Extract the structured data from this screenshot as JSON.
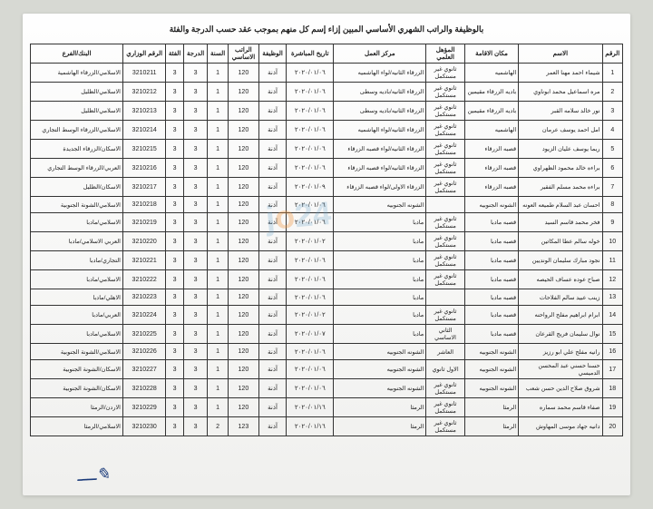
{
  "header": {
    "title": "بالوظيفة والراتب الشهري الأساسي المبين إزاء إسم كل منهم بموجب عقد حسب الدرجة والفئة"
  },
  "columns": {
    "num": "الرقم",
    "name": "الاسم",
    "place": "مكان الاقامة",
    "qual": "المؤهل العلمي",
    "center": "مركز العمل",
    "date": "تاريخ المباشرة",
    "func": "الوظيفة",
    "salary": "الراتب الاساسي",
    "year": "السنة",
    "grade": "الدرجة",
    "alf": "الفئة",
    "minno": "الرقم الوزاري",
    "bank": "البنك/الفرع"
  },
  "common": {
    "func": "آذنة",
    "salary120": "120",
    "salary123": "123",
    "year1": "1",
    "year2": "2",
    "grade3": "3",
    "alf3": "3",
    "qual_sec_inc": "ثانوي غير مستكمل",
    "qual_sec_base": "الثاني الاساسي",
    "qual_ten": "العاشر",
    "qual_first_sec": "الاول ثانوي"
  },
  "rows": [
    {
      "n": "1",
      "name": "شيماء احمد مهنا العمر",
      "place": "الهاشميه",
      "qual": "ثانوي غير مستكمل",
      "center": "الزرقاء الثانيه/لواء الهاشميه",
      "date": "٢٠٢٠/٠١/٠٦",
      "minno": "3210211",
      "bank": "الاسلامي/الزرقاء الهاشمية"
    },
    {
      "n": "2",
      "name": "مره اسماعيل محمد ابوناوي",
      "place": "باديه الزرقاء مقيمين",
      "qual": "ثانوي غير مستكمل",
      "center": "الزرقاء الثانيه/باديه وسطى",
      "date": "٢٠٢٠/٠١/٠٦",
      "minno": "3210212",
      "bank": "الاسلامي/الظليل"
    },
    {
      "n": "3",
      "name": "نور خالد سلامه القبر",
      "place": "باديه الزرقاء مقيمين",
      "qual": "ثانوي غير مستكمل",
      "center": "الزرقاء الثانيه/باديه وسطى",
      "date": "٢٠٢٠/٠١/٠٦",
      "minno": "3210213",
      "bank": "الاسلامي/الظليل"
    },
    {
      "n": "4",
      "name": "امل احمد يوسف عرمان",
      "place": "الهاشميه",
      "qual": "ثانوي غير مستكمل",
      "center": "الزرقاء الثانيه/لواء الهاشميه",
      "date": "٢٠٢٠/٠١/٠٦",
      "minno": "3210214",
      "bank": "الاسلامي/الزرقاء الوسط التجاري"
    },
    {
      "n": "5",
      "name": "ريما يوسف عليان الزيود",
      "place": "قصبه الزرقاء",
      "qual": "ثانوي غير مستكمل",
      "center": "الزرقاء الثانيه/لواء قصبه الزرقاء",
      "date": "٢٠٢٠/٠١/٠٦",
      "minno": "3210215",
      "bank": "الاسكان/الزرقاء الجديدة"
    },
    {
      "n": "6",
      "name": "براءه خالد محمود الظهراوي",
      "place": "قصبه الزرقاء",
      "qual": "ثانوي غير مستكمل",
      "center": "الزرقاء الثانيه/لواء قصبه الزرقاء",
      "date": "٢٠٢٠/٠١/٠٦",
      "minno": "3210216",
      "bank": "العربي/الزرقاء الوسط التجاري"
    },
    {
      "n": "7",
      "name": "براءه محمد مسلم الفقير",
      "place": "قصبه الزرقاء",
      "qual": "ثانوي غير مستكمل",
      "center": "الزرقاء الاولى/لواء قصبه الزرقاء",
      "date": "٢٠٢٠/٠١/٠٩",
      "minno": "3210217",
      "bank": "الاسكان/الظليل"
    },
    {
      "n": "8",
      "name": "احسان عبد السلام طميعه العونه",
      "place": "الشونه الجنوبيه",
      "qual": "",
      "center": "الشونه الجنوبيه",
      "date": "٢٠٢٠/٠١/٠٦",
      "minno": "3210218",
      "bank": "الاسلامي/الشونة الجنوبية"
    },
    {
      "n": "9",
      "name": "فخر محمد قاسم السيد",
      "place": "قصبه مادبا",
      "qual": "ثانوي غير مستكمل",
      "center": "مادبا",
      "date": "٢٠٢٠/٠١/٠٦",
      "minno": "3210219",
      "bank": "الاسلامي/مادبا"
    },
    {
      "n": "10",
      "name": "خوله سالم عطا المكاتين",
      "place": "قصبه مادبا",
      "qual": "ثانوي غير مستكمل",
      "center": "مادبا",
      "date": "٢٠٢٠/٠١/٠٢",
      "minno": "3210220",
      "bank": "العربي الاسلامي/مادبا"
    },
    {
      "n": "11",
      "name": "نجود مبارك سليمان الونديين",
      "place": "قصبه مادبا",
      "qual": "ثانوي غير مستكمل",
      "center": "مادبا",
      "date": "٢٠٢٠/٠١/٠٦",
      "minno": "3210221",
      "bank": "التجاري/مادبا"
    },
    {
      "n": "12",
      "name": "صباح عوده عساف الحيصه",
      "place": "قصبه مادبا",
      "qual": "ثانوي غير مستكمل",
      "center": "مادبا",
      "date": "٢٠٢٠/٠١/٠٦",
      "minno": "3210222",
      "bank": "الاسلامي/مادبا"
    },
    {
      "n": "13",
      "name": "زينب عبيد سالم الفلاحات",
      "place": "قصبه مادبا",
      "qual": "",
      "center": "مادبا",
      "date": "٢٠٢٠/٠١/٠٦",
      "minno": "3210223",
      "bank": "الاهلي/مادبا"
    },
    {
      "n": "14",
      "name": "ابرام ابراهيم مفلح الرواحنه",
      "place": "قصبه مادبا",
      "qual": "ثانوي غير مستكمل",
      "center": "مادبا",
      "date": "٢٠٢٠/٠١/٠٢",
      "minno": "3210224",
      "bank": "العربي/مادبا"
    },
    {
      "n": "15",
      "name": "نوال سليمان فريج القرعان",
      "place": "قصبه مادبا",
      "qual": "الثاني الاساسي",
      "center": "مادبا",
      "date": "٢٠٢٠/٠١/٠٧",
      "minno": "3210225",
      "bank": "الاسلامي/مادبا"
    },
    {
      "n": "16",
      "name": "رانيه مفلح علي ابو رزيز",
      "place": "الشونه الجنوبيه",
      "qual": "العاشر",
      "center": "الشونه الجنوبيه",
      "date": "٢٠٢٠/٠١/٠٦",
      "minno": "3210226",
      "bank": "الاسلامي/الشونة الجنوبية"
    },
    {
      "n": "17",
      "name": "حسنا حسني عبد المحسن الدميسي",
      "place": "الشونه الجنوبيه",
      "qual": "الاول ثانوي",
      "center": "الشونه الجنوبيه",
      "date": "٢٠٢٠/٠١/٠٦",
      "minno": "3210227",
      "bank": "الاسكان/الشونة الجنوبية"
    },
    {
      "n": "18",
      "name": "شروق صلاح الدين حسن شعب",
      "place": "الشونه الجنوبيه",
      "qual": "ثانوي غير مستكمل",
      "center": "الشونه الجنوبيه",
      "date": "٢٠٢٠/٠١/٠٦",
      "minno": "3210228",
      "bank": "الاسكان/الشونة الجنوبية"
    },
    {
      "n": "19",
      "name": "صفاء قاسم محمد سماره",
      "place": "الرمثا",
      "qual": "ثانوي غير مستكمل",
      "center": "الرمثا",
      "date": "٢٠٢٠/٠١/١٦",
      "minno": "3210229",
      "bank": "الاردن/الرمثا"
    },
    {
      "n": "20",
      "name": "دانيه جهاد موسى المهاوش",
      "place": "الرمثا",
      "qual": "ثانوي غير مستكمل",
      "center": "الرمثا",
      "date": "٢٠٢٠/٠١/١٦",
      "minno": "3210230",
      "bank": "الاسلامي/الرمثا"
    }
  ]
}
